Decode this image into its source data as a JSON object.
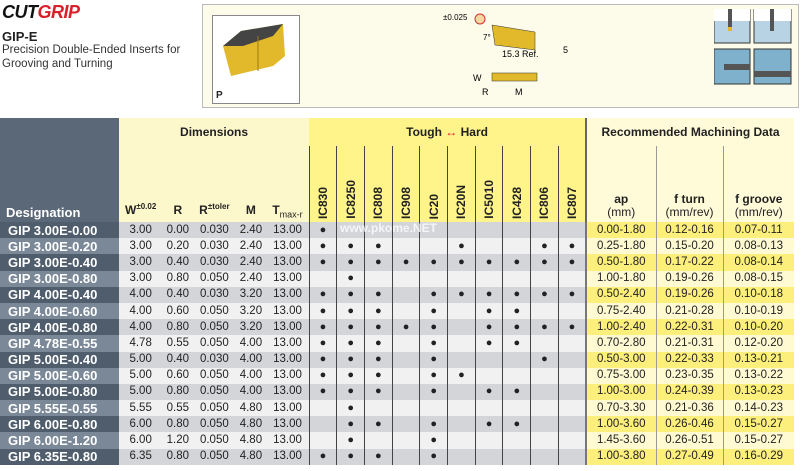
{
  "brand": {
    "logo_text_a": "CUT",
    "logo_text_b": "GRIP"
  },
  "product": {
    "title": "GIP-E",
    "subtitle": "Precision Double-Ended Inserts for Grooving and Turning",
    "material_label": "P"
  },
  "drawing": {
    "tolerance": "±0.025",
    "angle": "7°",
    "ref_length": "15.3 Ref.",
    "dim_5": "5",
    "w": "W",
    "r": "R",
    "m": "M"
  },
  "watermark": "www.pkome.NET",
  "table": {
    "designation_header": "Designation",
    "dimensions_header": "Dimensions",
    "grades_header_left": "Tough",
    "grades_header_right": "Hard",
    "arrow": "↔",
    "machining_header": "Recommended  Machining Data",
    "dim_cols": [
      {
        "main": "W",
        "sup": "±0.02",
        "sub": ""
      },
      {
        "main": "R",
        "sup": "",
        "sub": ""
      },
      {
        "main": "R",
        "sup": "±toler",
        "sub": ""
      },
      {
        "main": "M",
        "sup": "",
        "sub": ""
      },
      {
        "main": "T",
        "sup": "",
        "sub": "max-r"
      }
    ],
    "grades": [
      "IC830",
      "IC8250",
      "IC808",
      "IC908",
      "IC20",
      "IC20N",
      "IC5010",
      "IC428",
      "IC806",
      "IC807"
    ],
    "machining_cols": [
      {
        "l1": "ap",
        "l2": "(mm)"
      },
      {
        "l1": "f turn",
        "l2": "(mm/rev)"
      },
      {
        "l1": "f groove",
        "l2": "(mm/rev)"
      }
    ],
    "rows": [
      {
        "des": "GIP 3.00E-0.00",
        "dims": [
          "3.00",
          "0.00",
          "0.030",
          "2.40",
          "13.00"
        ],
        "g": [
          1,
          0,
          0,
          0,
          0,
          0,
          0,
          0,
          0,
          0
        ],
        "md": [
          "0.00-1.80",
          "0.12-0.16",
          "0.07-0.11"
        ]
      },
      {
        "des": "GIP 3.00E-0.20",
        "dims": [
          "3.00",
          "0.20",
          "0.030",
          "2.40",
          "13.00"
        ],
        "g": [
          1,
          1,
          1,
          0,
          0,
          1,
          0,
          0,
          1,
          1
        ],
        "md": [
          "0.25-1.80",
          "0.15-0.20",
          "0.08-0.13"
        ]
      },
      {
        "des": "GIP 3.00E-0.40",
        "dims": [
          "3.00",
          "0.40",
          "0.030",
          "2.40",
          "13.00"
        ],
        "g": [
          1,
          1,
          1,
          1,
          1,
          1,
          1,
          1,
          1,
          1
        ],
        "md": [
          "0.50-1.80",
          "0.17-0.22",
          "0.08-0.14"
        ]
      },
      {
        "des": "GIP 3.00E-0.80",
        "dims": [
          "3.00",
          "0.80",
          "0.050",
          "2.40",
          "13.00"
        ],
        "g": [
          0,
          1,
          0,
          0,
          0,
          0,
          0,
          0,
          0,
          0
        ],
        "md": [
          "1.00-1.80",
          "0.19-0.26",
          "0.08-0.15"
        ]
      },
      {
        "des": "GIP 4.00E-0.40",
        "dims": [
          "4.00",
          "0.40",
          "0.030",
          "3.20",
          "13.00"
        ],
        "g": [
          1,
          1,
          1,
          0,
          1,
          1,
          1,
          1,
          1,
          1
        ],
        "md": [
          "0.50-2.40",
          "0.19-0.26",
          "0.10-0.18"
        ]
      },
      {
        "des": "GIP 4.00E-0.60",
        "dims": [
          "4.00",
          "0.60",
          "0.050",
          "3.20",
          "13.00"
        ],
        "g": [
          1,
          1,
          1,
          0,
          1,
          0,
          1,
          1,
          0,
          0
        ],
        "md": [
          "0.75-2.40",
          "0.21-0.28",
          "0.10-0.19"
        ]
      },
      {
        "des": "GIP 4.00E-0.80",
        "dims": [
          "4.00",
          "0.80",
          "0.050",
          "3.20",
          "13.00"
        ],
        "g": [
          1,
          1,
          1,
          1,
          1,
          0,
          1,
          1,
          1,
          1
        ],
        "md": [
          "1.00-2.40",
          "0.22-0.31",
          "0.10-0.20"
        ]
      },
      {
        "des": "GIP 4.78E-0.55",
        "dims": [
          "4.78",
          "0.55",
          "0.050",
          "4.00",
          "13.00"
        ],
        "g": [
          1,
          1,
          1,
          0,
          1,
          0,
          1,
          1,
          0,
          0
        ],
        "md": [
          "0.70-2.80",
          "0.21-0.31",
          "0.12-0.20"
        ]
      },
      {
        "des": "GIP 5.00E-0.40",
        "dims": [
          "5.00",
          "0.40",
          "0.030",
          "4.00",
          "13.00"
        ],
        "g": [
          1,
          1,
          1,
          0,
          1,
          0,
          0,
          0,
          1,
          0
        ],
        "md": [
          "0.50-3.00",
          "0.22-0.33",
          "0.13-0.21"
        ]
      },
      {
        "des": "GIP 5.00E-0.60",
        "dims": [
          "5.00",
          "0.60",
          "0.050",
          "4.00",
          "13.00"
        ],
        "g": [
          1,
          1,
          1,
          0,
          1,
          1,
          0,
          0,
          0,
          0
        ],
        "md": [
          "0.75-3.00",
          "0.23-0.35",
          "0.13-0.22"
        ]
      },
      {
        "des": "GIP 5.00E-0.80",
        "dims": [
          "5.00",
          "0.80",
          "0.050",
          "4.00",
          "13.00"
        ],
        "g": [
          1,
          1,
          1,
          0,
          1,
          0,
          1,
          1,
          0,
          0
        ],
        "md": [
          "1.00-3.00",
          "0.24-0.39",
          "0.13-0.23"
        ]
      },
      {
        "des": "GIP 5.55E-0.55",
        "dims": [
          "5.55",
          "0.55",
          "0.050",
          "4.80",
          "13.00"
        ],
        "g": [
          0,
          1,
          0,
          0,
          0,
          0,
          0,
          0,
          0,
          0
        ],
        "md": [
          "0.70-3.30",
          "0.21-0.36",
          "0.14-0.23"
        ]
      },
      {
        "des": "GIP 6.00E-0.80",
        "dims": [
          "6.00",
          "0.80",
          "0.050",
          "4.80",
          "13.00"
        ],
        "g": [
          0,
          1,
          1,
          0,
          1,
          0,
          1,
          1,
          0,
          0
        ],
        "md": [
          "1.00-3.60",
          "0.26-0.46",
          "0.15-0.27"
        ]
      },
      {
        "des": "GIP 6.00E-1.20",
        "dims": [
          "6.00",
          "1.20",
          "0.050",
          "4.80",
          "13.00"
        ],
        "g": [
          0,
          1,
          0,
          0,
          1,
          0,
          0,
          0,
          0,
          0
        ],
        "md": [
          "1.45-3.60",
          "0.26-0.51",
          "0.15-0.27"
        ]
      },
      {
        "des": "GIP 6.35E-0.80",
        "dims": [
          "6.35",
          "0.80",
          "0.050",
          "4.80",
          "13.00"
        ],
        "g": [
          1,
          1,
          1,
          0,
          1,
          0,
          0,
          0,
          0,
          0
        ],
        "md": [
          "1.00-3.80",
          "0.27-0.49",
          "0.16-0.29"
        ]
      }
    ],
    "dot": "●"
  },
  "colors": {
    "brand_red": "#d8202a",
    "designation_bg": "#5b6878",
    "grade_header": "#fff48a",
    "machining_highlight": "#fcef7b"
  }
}
